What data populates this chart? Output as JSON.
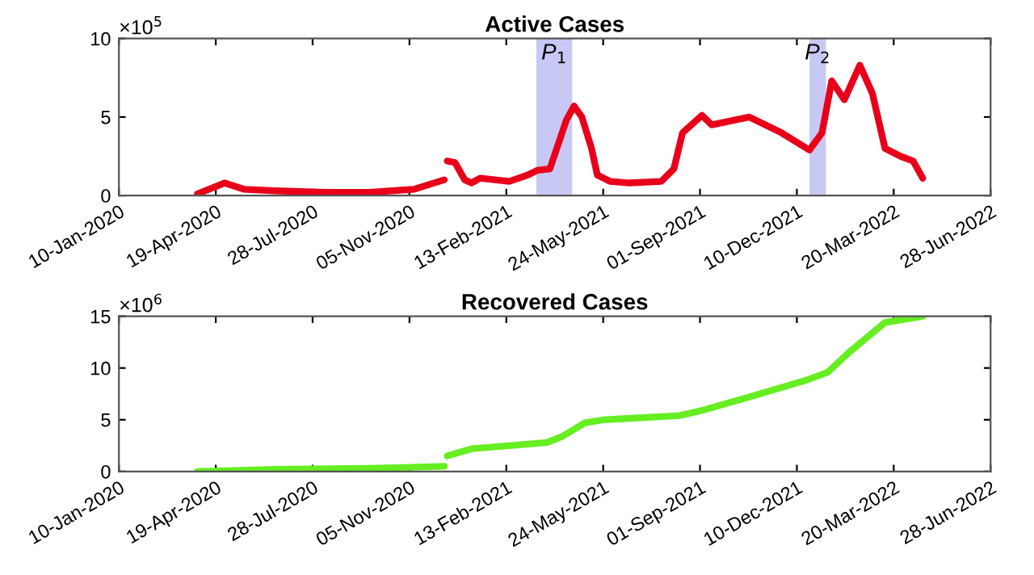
{
  "chart_data": [
    {
      "type": "line",
      "title": "Active Cases",
      "annotations": [
        "×10$^{5}$"
      ],
      "grid": false,
      "line_style": "solid",
      "marker": "none",
      "xlim": [
        "2020-01-10",
        "2022-06-28"
      ],
      "xticks": [
        {
          "value": "2020-01-10",
          "label": "10-Jan-2020"
        },
        {
          "value": "2020-04-19",
          "label": "19-Apr-2020"
        },
        {
          "value": "2020-07-28",
          "label": "28-Jul-2020"
        },
        {
          "value": "2020-11-05",
          "label": "05-Nov-2020"
        },
        {
          "value": "2021-02-13",
          "label": "13-Feb-2021"
        },
        {
          "value": "2021-05-24",
          "label": "24-May-2021"
        },
        {
          "value": "2021-09-01",
          "label": "01-Sep-2021"
        },
        {
          "value": "2021-12-10",
          "label": "10-Dec-2021"
        },
        {
          "value": "2022-03-20",
          "label": "20-Mar-2022"
        },
        {
          "value": "2022-06-28",
          "label": "28-Jun-2022"
        }
      ],
      "ylim": [
        0,
        10
      ],
      "yticks": [
        0,
        5,
        10
      ],
      "bands": [
        {
          "axis": "x",
          "from": "2021-03-16",
          "to": "2021-04-22",
          "label": "P$_{1}$",
          "color": "#c8c8f5"
        },
        {
          "axis": "x",
          "from": "2021-12-23",
          "to": "2022-01-09",
          "label": "P$_{2}$",
          "color": "#c8c8f5"
        }
      ],
      "series": [
        {
          "color": "#e8001a",
          "x": [
            "2020-03-31",
            "2020-04-28",
            "2020-05-18",
            "2020-06-19",
            "2020-08-11",
            "2020-09-25",
            "2020-11-10",
            "2020-12-11",
            "2020-12-12",
            "2020-12-14",
            "2020-12-22",
            "2021-01-01",
            "2021-01-08",
            "2021-01-17",
            "2021-02-16",
            "2021-03-07",
            "2021-03-17",
            "2021-03-30",
            "2021-04-16",
            "2021-04-24",
            "2021-05-02",
            "2021-05-12",
            "2021-05-18",
            "2021-05-31",
            "2021-06-20",
            "2021-07-23",
            "2021-08-05",
            "2021-08-14",
            "2021-09-03",
            "2021-09-13",
            "2021-10-22",
            "2021-11-24",
            "2021-12-23",
            "2022-01-05",
            "2022-01-15",
            "2022-01-28",
            "2022-02-13",
            "2022-02-26",
            "2022-03-11",
            "2022-03-27",
            "2022-04-09",
            "2022-04-19"
          ],
          "values": [
            0.1,
            0.8,
            0.4,
            0.3,
            0.2,
            0.2,
            0.4,
            1.0,
            null,
            2.2,
            2.1,
            1.0,
            0.8,
            1.1,
            0.9,
            1.3,
            1.6,
            1.7,
            4.8,
            5.7,
            5.0,
            3.0,
            1.3,
            0.9,
            0.8,
            0.9,
            1.7,
            4.0,
            5.1,
            4.5,
            5.0,
            4.0,
            2.9,
            4.0,
            7.3,
            6.1,
            8.3,
            6.5,
            3.0,
            2.5,
            2.2,
            1.1
          ]
        }
      ]
    },
    {
      "type": "line",
      "title": "Recovered Cases",
      "annotations": [
        "×10$^{6}$"
      ],
      "grid": false,
      "line_style": "solid",
      "marker": "none",
      "xlim": [
        "2020-01-10",
        "2022-06-28"
      ],
      "xticks": [
        {
          "value": "2020-01-10",
          "label": "10-Jan-2020"
        },
        {
          "value": "2020-04-19",
          "label": "19-Apr-2020"
        },
        {
          "value": "2020-07-28",
          "label": "28-Jul-2020"
        },
        {
          "value": "2020-11-05",
          "label": "05-Nov-2020"
        },
        {
          "value": "2021-02-13",
          "label": "13-Feb-2021"
        },
        {
          "value": "2021-05-24",
          "label": "24-May-2021"
        },
        {
          "value": "2021-09-01",
          "label": "01-Sep-2021"
        },
        {
          "value": "2021-12-10",
          "label": "10-Dec-2021"
        },
        {
          "value": "2022-03-20",
          "label": "20-Mar-2022"
        },
        {
          "value": "2022-06-28",
          "label": "28-Jun-2022"
        }
      ],
      "ylim": [
        0,
        15
      ],
      "yticks": [
        0,
        5,
        10,
        15
      ],
      "series": [
        {
          "color": "#66ee22",
          "x": [
            "2020-03-31",
            "2020-06-19",
            "2020-09-25",
            "2020-12-11",
            "2020-12-12",
            "2020-12-14",
            "2021-01-08",
            "2021-02-16",
            "2021-03-27",
            "2021-04-12",
            "2021-05-05",
            "2021-05-25",
            "2021-08-11",
            "2021-09-03",
            "2021-10-22",
            "2021-12-19",
            "2022-01-11",
            "2022-02-03",
            "2022-03-11",
            "2022-04-19"
          ],
          "values": [
            0,
            0.2,
            0.3,
            0.5,
            null,
            1.5,
            2.2,
            2.5,
            2.8,
            3.4,
            4.7,
            5.0,
            5.4,
            5.9,
            7.2,
            8.8,
            9.6,
            11.6,
            14.4,
            15.0
          ]
        }
      ]
    }
  ]
}
